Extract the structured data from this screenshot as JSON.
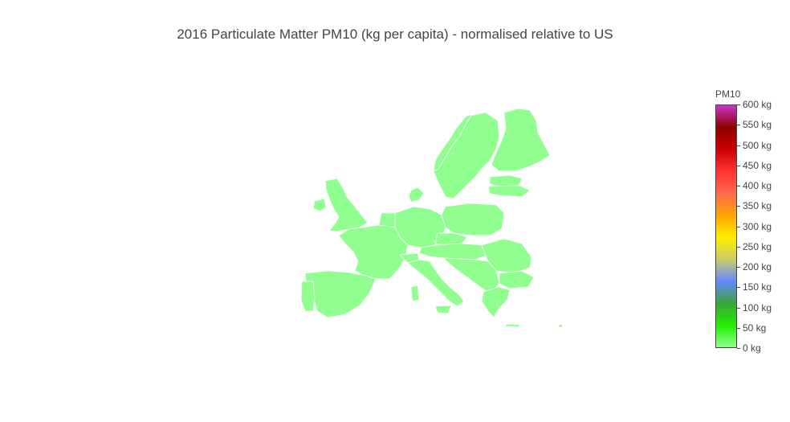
{
  "title": "2016 Particulate Matter PM10 (kg per capita) - normalised relative to US",
  "colorbar": {
    "title": "PM10",
    "ticks": [
      "0 kg",
      "50 kg",
      "100 kg",
      "150 kg",
      "200 kg",
      "250 kg",
      "300 kg",
      "350 kg",
      "400 kg",
      "450 kg",
      "500 kg",
      "550 kg",
      "600 kg"
    ],
    "range": [
      0,
      600
    ],
    "colorscale": [
      "#90ff90",
      "#22ee00",
      "#3aa33a",
      "#6688ff",
      "#cccc66",
      "#ffee00",
      "#ffa500",
      "#ff6a4d",
      "#ff3333",
      "#cc0000",
      "#8b0000",
      "#cc33cc"
    ]
  },
  "map": {
    "region": "Europe",
    "fill_color": "#90ff90",
    "border_color": "#ffffff"
  }
}
